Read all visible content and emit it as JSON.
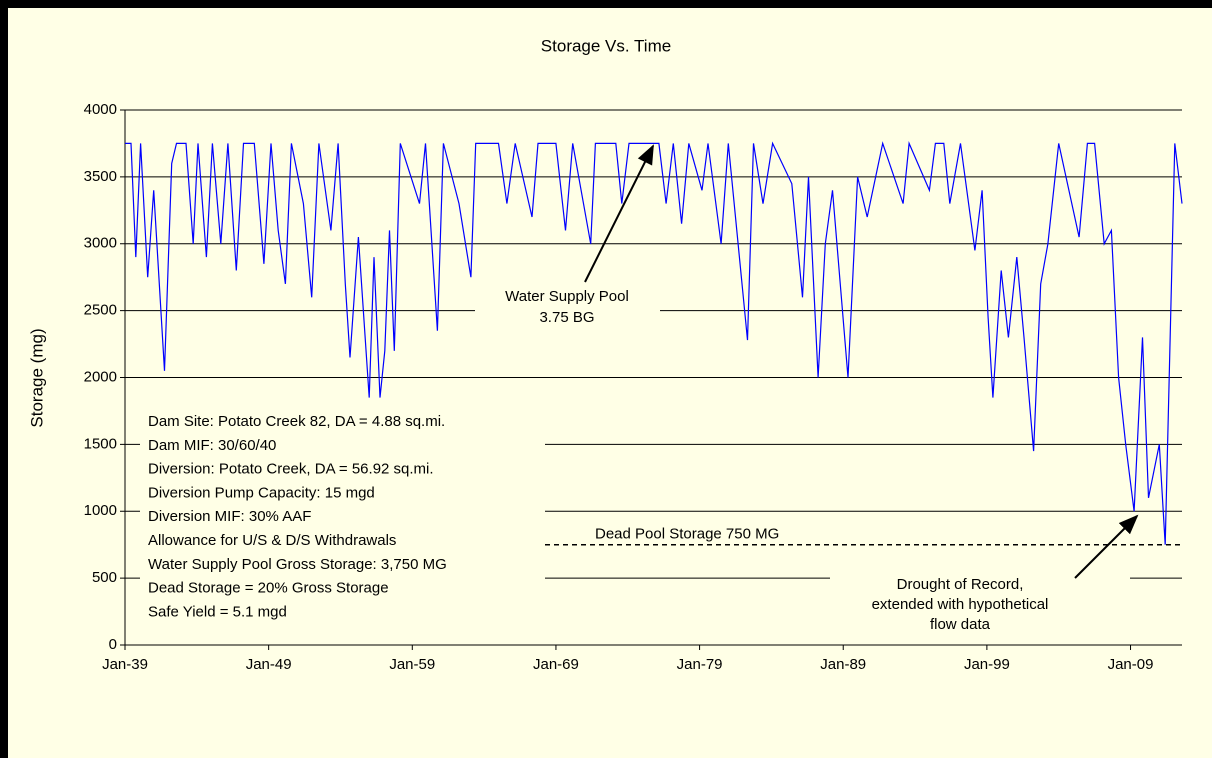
{
  "chart_data": {
    "type": "line",
    "title": "Storage Vs. Time",
    "ylabel": "Storage (mg)",
    "ylim": [
      0,
      4000
    ],
    "yticks": [
      0,
      500,
      1000,
      1500,
      2000,
      2500,
      3000,
      3500,
      4000
    ],
    "grid": true,
    "xlim": [
      "1939-01",
      "2012-08"
    ],
    "xticks": [
      {
        "value": "1939-01",
        "label": "Jan-39"
      },
      {
        "value": "1949-01",
        "label": "Jan-49"
      },
      {
        "value": "1959-01",
        "label": "Jan-59"
      },
      {
        "value": "1969-01",
        "label": "Jan-69"
      },
      {
        "value": "1979-01",
        "label": "Jan-79"
      },
      {
        "value": "1989-01",
        "label": "Jan-89"
      },
      {
        "value": "1999-01",
        "label": "Jan-99"
      },
      {
        "value": "2009-01",
        "label": "Jan-09"
      }
    ],
    "series": [
      {
        "name": "Storage",
        "color": "#0000ff",
        "x": [
          "1939-01",
          "1939-06",
          "1939-10",
          "1940-02",
          "1940-08",
          "1941-01",
          "1941-10",
          "1942-04",
          "1942-08",
          "1943-04",
          "1943-10",
          "1944-02",
          "1944-09",
          "1945-02",
          "1945-09",
          "1946-03",
          "1946-10",
          "1947-04",
          "1948-01",
          "1948-09",
          "1949-03",
          "1949-09",
          "1950-03",
          "1950-08",
          "1951-06",
          "1952-01",
          "1952-07",
          "1953-05",
          "1953-11",
          "1954-05",
          "1954-09",
          "1955-04",
          "1956-01",
          "1956-05",
          "1956-10",
          "1957-02",
          "1957-06",
          "1957-10",
          "1958-03",
          "1959-07",
          "1959-12",
          "1960-10",
          "1961-03",
          "1962-04",
          "1963-02",
          "1963-06",
          "1965-01",
          "1965-08",
          "1966-03",
          "1967-05",
          "1967-10",
          "1969-01",
          "1969-09",
          "1970-03",
          "1971-06",
          "1971-10",
          "1973-03",
          "1973-08",
          "1974-02",
          "1976-03",
          "1976-09",
          "1977-03",
          "1977-10",
          "1978-04",
          "1979-03",
          "1979-08",
          "1980-07",
          "1981-01",
          "1982-05",
          "1982-10",
          "1983-06",
          "1984-02",
          "1985-06",
          "1986-03",
          "1986-08",
          "1987-04",
          "1987-10",
          "1988-04",
          "1989-05",
          "1990-01",
          "1990-09",
          "1991-10",
          "1993-03",
          "1993-08",
          "1995-01",
          "1995-06",
          "1996-01",
          "1996-06",
          "1997-03",
          "1998-03",
          "1998-09",
          "1999-02",
          "1999-06",
          "2000-01",
          "2000-07",
          "2001-02",
          "2001-08",
          "2002-04",
          "2002-10",
          "2003-04",
          "2004-01",
          "2005-06",
          "2006-01",
          "2006-07",
          "2007-03",
          "2007-09",
          "2008-03",
          "2008-09",
          "2009-04",
          "2009-11",
          "2010-04",
          "2011-01",
          "2011-06",
          "2012-02",
          "2012-08"
        ],
        "values": [
          3750,
          3750,
          2900,
          3750,
          2750,
          3400,
          2050,
          3600,
          3750,
          3750,
          3000,
          3750,
          2900,
          3750,
          3000,
          3750,
          2800,
          3750,
          3750,
          2850,
          3750,
          3100,
          2700,
          3750,
          3300,
          2600,
          3750,
          3100,
          3750,
          2700,
          2150,
          3050,
          1850,
          2900,
          1850,
          2200,
          3100,
          2200,
          3750,
          3300,
          3750,
          2350,
          3750,
          3300,
          2750,
          3750,
          3750,
          3300,
          3750,
          3200,
          3750,
          3750,
          3100,
          3750,
          3000,
          3750,
          3750,
          3300,
          3750,
          3750,
          3300,
          3750,
          3150,
          3750,
          3400,
          3750,
          3000,
          3750,
          2280,
          3750,
          3300,
          3750,
          3450,
          2600,
          3500,
          2000,
          3000,
          3400,
          2000,
          3500,
          3200,
          3750,
          3300,
          3750,
          3400,
          3750,
          3750,
          3300,
          3750,
          2950,
          3400,
          2450,
          1850,
          2800,
          2300,
          2900,
          2300,
          1450,
          2700,
          3000,
          3750,
          3050,
          3750,
          3750,
          3000,
          3100,
          2000,
          1500,
          1000,
          2300,
          1100,
          1500,
          750,
          3750,
          3300
        ]
      }
    ],
    "dead_pool": {
      "label": "Dead Pool Storage 750 MG",
      "value": 750
    },
    "annotations": {
      "pool": [
        "Water Supply Pool",
        "3.75 BG"
      ],
      "drought": [
        "Drought of Record,",
        "extended with hypothetical",
        "flow data"
      ]
    },
    "notes": [
      "Dam Site: Potato Creek 82, DA = 4.88 sq.mi.",
      "Dam MIF: 30/60/40",
      "Diversion: Potato Creek, DA = 56.92 sq.mi.",
      "Diversion Pump Capacity: 15 mgd",
      "Diversion MIF: 30% AAF",
      "Allowance for U/S & D/S Withdrawals",
      "Water Supply Pool Gross Storage: 3,750 MG",
      "Dead Storage = 20% Gross Storage",
      "Safe Yield = 5.1 mgd"
    ]
  }
}
